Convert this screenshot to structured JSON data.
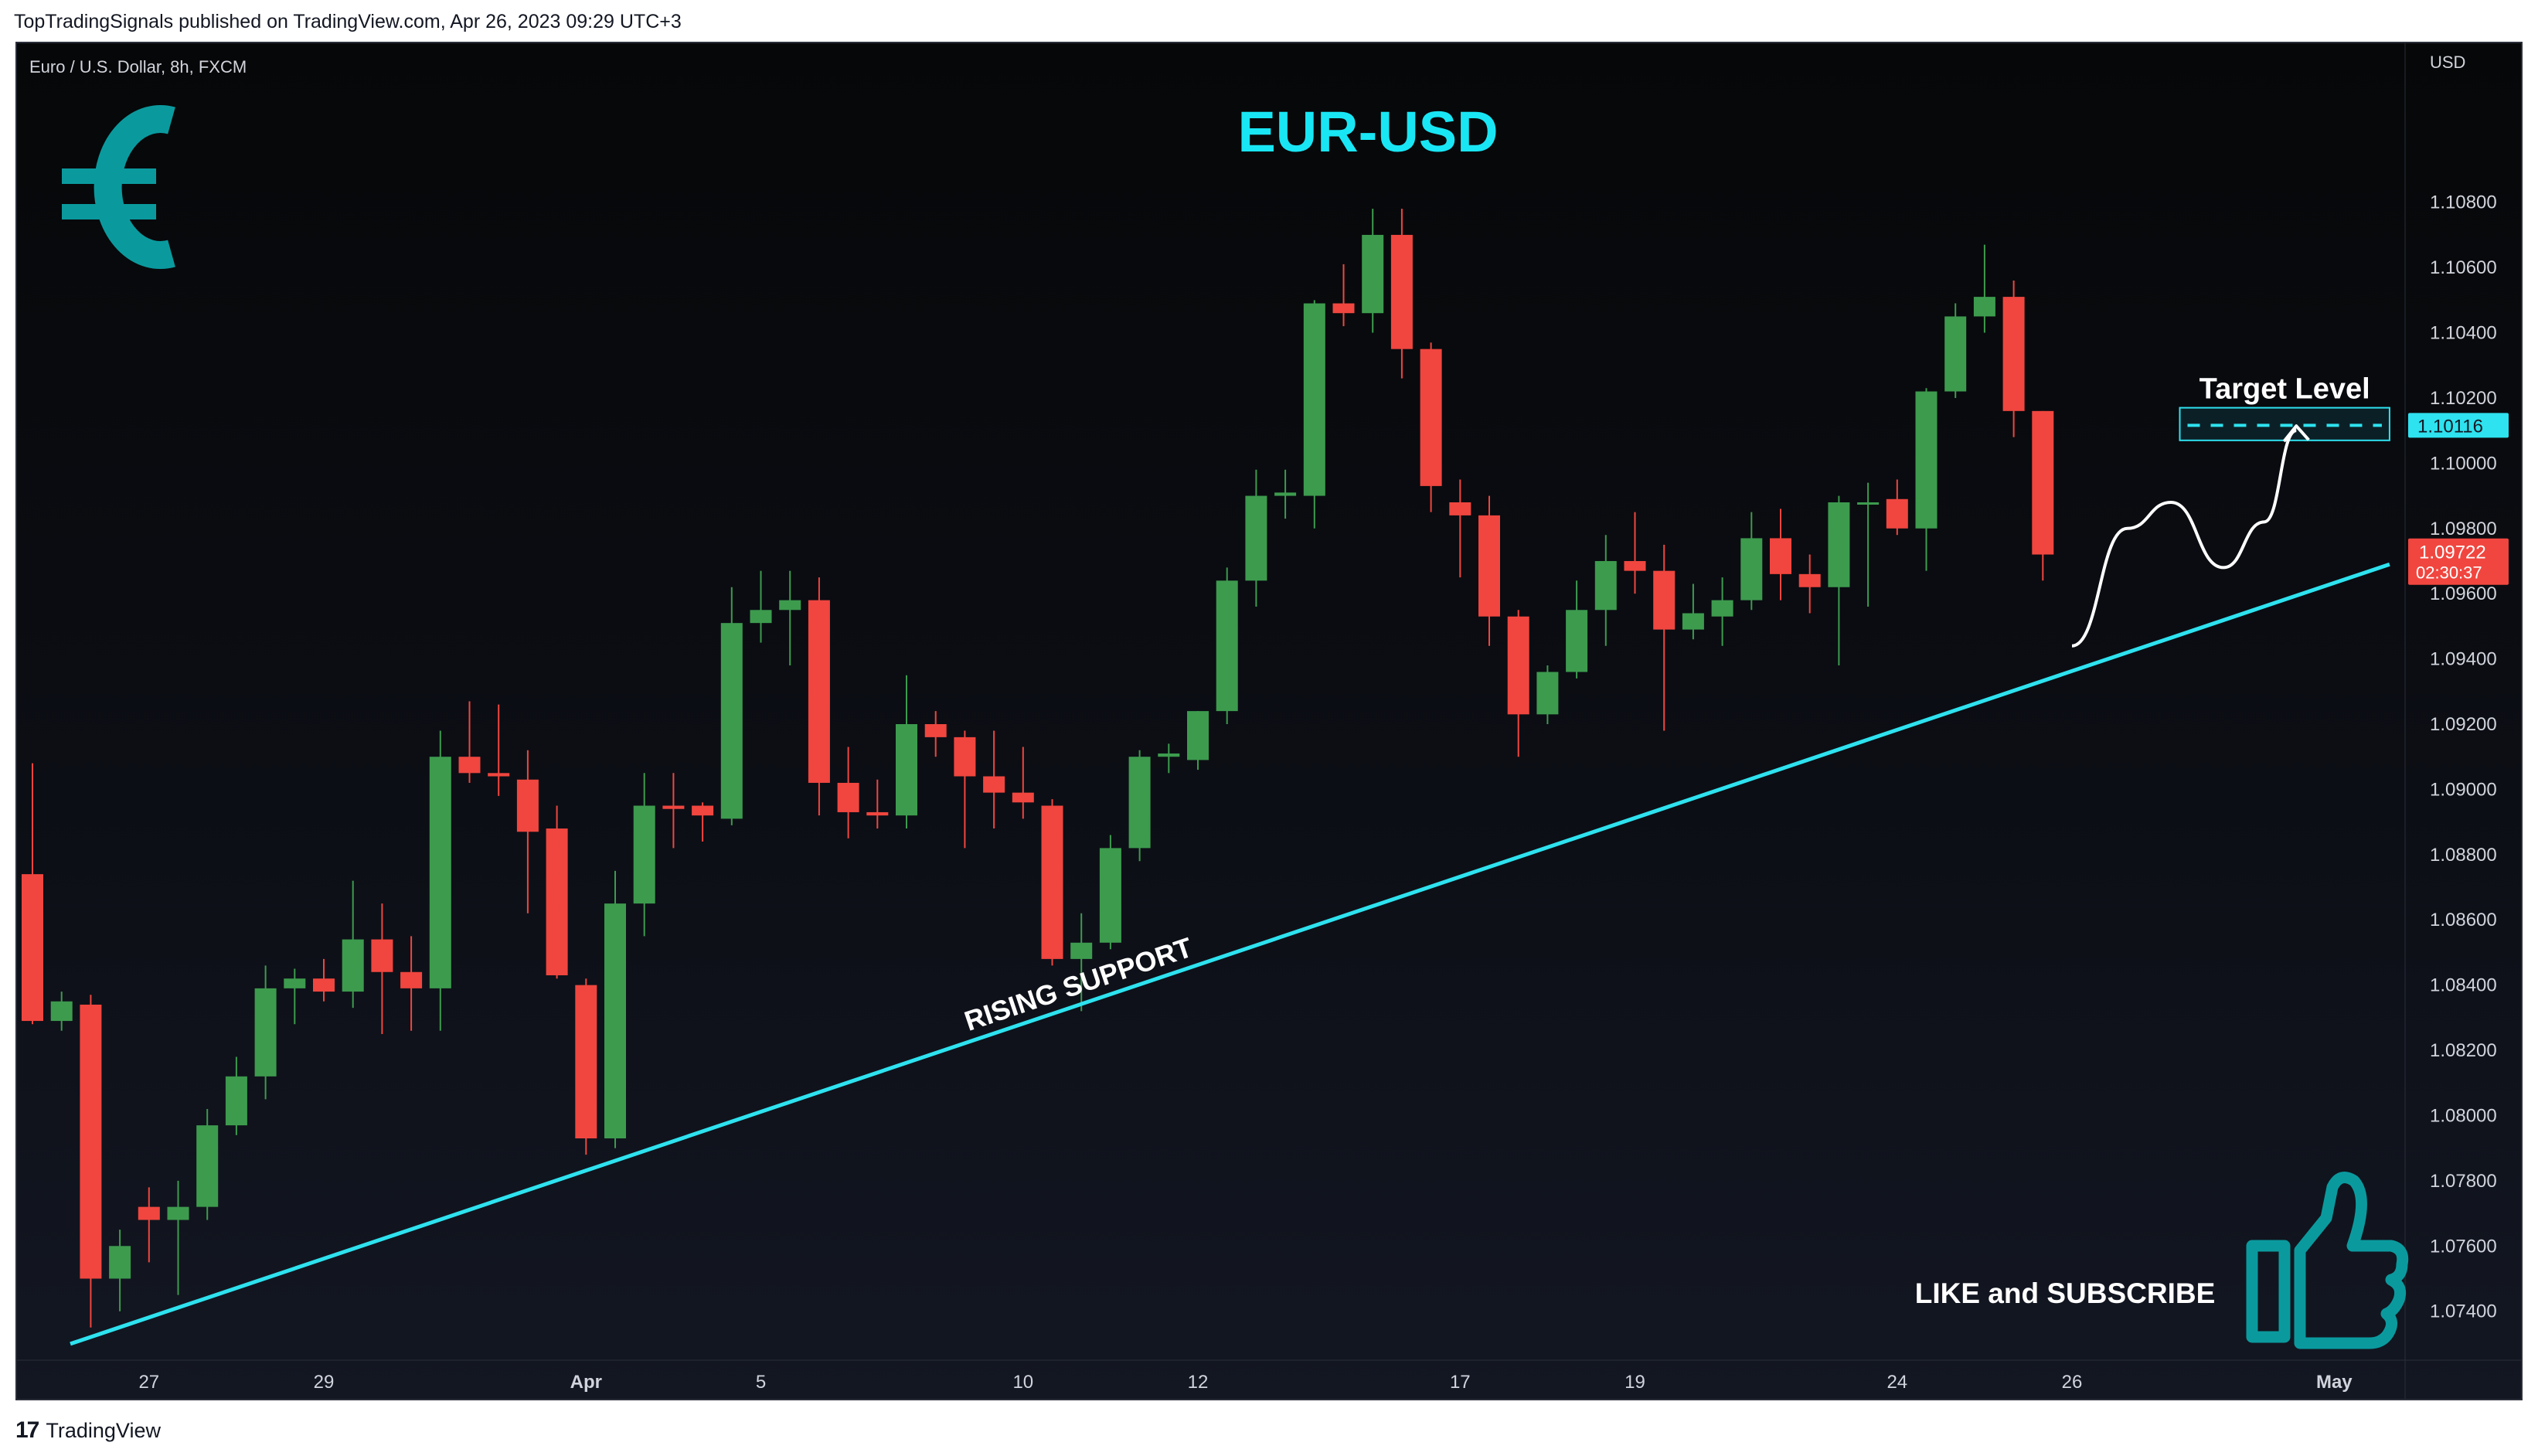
{
  "header": {
    "caption": "TopTradingSignals published on TradingView.com, Apr 26, 2023 09:29 UTC+3"
  },
  "footer": {
    "logo_text": "TradingView"
  },
  "colors": {
    "up": "#3d9b4e",
    "down": "#f0463f",
    "support_line": "#2ee2ef",
    "title": "#19e6f4",
    "euro_icon": "#0a9a9e",
    "thumb_icon": "#0a9a9e",
    "arrow": "#ffffff",
    "axis_text": "#d1d4dc"
  },
  "chart_data": {
    "type": "candlestick",
    "symbol_label": "Euro / U.S. Dollar, 8h, FXCM",
    "title": "EUR-USD",
    "y_axis_unit": "USD",
    "ylim": [
      1.0725,
      1.1115
    ],
    "y_ticks": [
      "1.10800",
      "1.10600",
      "1.10400",
      "1.10200",
      "1.10000",
      "1.09800",
      "1.09600",
      "1.09400",
      "1.09200",
      "1.09000",
      "1.08800",
      "1.08600",
      "1.08400",
      "1.08200",
      "1.08000",
      "1.07800",
      "1.07600",
      "1.07400"
    ],
    "x_ticks": [
      {
        "label": "27",
        "index": 4
      },
      {
        "label": "29",
        "index": 10
      },
      {
        "label": "Apr",
        "index": 19
      },
      {
        "label": "5",
        "index": 25
      },
      {
        "label": "10",
        "index": 34
      },
      {
        "label": "12",
        "index": 40
      },
      {
        "label": "17",
        "index": 49
      },
      {
        "label": "19",
        "index": 55
      },
      {
        "label": "24",
        "index": 64
      },
      {
        "label": "26",
        "index": 70
      },
      {
        "label": "May",
        "index": 79
      }
    ],
    "candles": [
      {
        "o": 1.0874,
        "h": 1.0908,
        "l": 1.0828,
        "c": 1.0829
      },
      {
        "o": 1.0829,
        "h": 1.0838,
        "l": 1.0826,
        "c": 1.0835
      },
      {
        "o": 1.0834,
        "h": 1.0837,
        "l": 1.0735,
        "c": 1.075
      },
      {
        "o": 1.075,
        "h": 1.0765,
        "l": 1.074,
        "c": 1.076
      },
      {
        "o": 1.0772,
        "h": 1.0778,
        "l": 1.0755,
        "c": 1.0768
      },
      {
        "o": 1.0768,
        "h": 1.078,
        "l": 1.0745,
        "c": 1.0772
      },
      {
        "o": 1.0772,
        "h": 1.0802,
        "l": 1.0768,
        "c": 1.0797
      },
      {
        "o": 1.0797,
        "h": 1.0818,
        "l": 1.0794,
        "c": 1.0812
      },
      {
        "o": 1.0812,
        "h": 1.0846,
        "l": 1.0805,
        "c": 1.0839
      },
      {
        "o": 1.0839,
        "h": 1.0845,
        "l": 1.0828,
        "c": 1.0842
      },
      {
        "o": 1.0842,
        "h": 1.0848,
        "l": 1.0835,
        "c": 1.0838
      },
      {
        "o": 1.0838,
        "h": 1.0872,
        "l": 1.0833,
        "c": 1.0854
      },
      {
        "o": 1.0854,
        "h": 1.0865,
        "l": 1.0825,
        "c": 1.0844
      },
      {
        "o": 1.0844,
        "h": 1.0855,
        "l": 1.0826,
        "c": 1.0839
      },
      {
        "o": 1.0839,
        "h": 1.0918,
        "l": 1.0826,
        "c": 1.091
      },
      {
        "o": 1.091,
        "h": 1.0927,
        "l": 1.0902,
        "c": 1.0905
      },
      {
        "o": 1.0905,
        "h": 1.0926,
        "l": 1.0898,
        "c": 1.0904
      },
      {
        "o": 1.0903,
        "h": 1.0912,
        "l": 1.0862,
        "c": 1.0887
      },
      {
        "o": 1.0888,
        "h": 1.0895,
        "l": 1.0842,
        "c": 1.0843
      },
      {
        "o": 1.084,
        "h": 1.0842,
        "l": 1.0788,
        "c": 1.0793
      },
      {
        "o": 1.0793,
        "h": 1.0875,
        "l": 1.079,
        "c": 1.0865
      },
      {
        "o": 1.0865,
        "h": 1.0905,
        "l": 1.0855,
        "c": 1.0895
      },
      {
        "o": 1.0895,
        "h": 1.0905,
        "l": 1.0882,
        "c": 1.0894
      },
      {
        "o": 1.0895,
        "h": 1.0896,
        "l": 1.0884,
        "c": 1.0892
      },
      {
        "o": 1.0891,
        "h": 1.0962,
        "l": 1.0889,
        "c": 1.0951
      },
      {
        "o": 1.0951,
        "h": 1.0967,
        "l": 1.0945,
        "c": 1.0955
      },
      {
        "o": 1.0955,
        "h": 1.0967,
        "l": 1.0938,
        "c": 1.0958
      },
      {
        "o": 1.0958,
        "h": 1.0965,
        "l": 1.0892,
        "c": 1.0902
      },
      {
        "o": 1.0902,
        "h": 1.0913,
        "l": 1.0885,
        "c": 1.0893
      },
      {
        "o": 1.0893,
        "h": 1.0903,
        "l": 1.0888,
        "c": 1.0892
      },
      {
        "o": 1.0892,
        "h": 1.0935,
        "l": 1.0888,
        "c": 1.092
      },
      {
        "o": 1.092,
        "h": 1.0924,
        "l": 1.091,
        "c": 1.0916
      },
      {
        "o": 1.0916,
        "h": 1.0918,
        "l": 1.0882,
        "c": 1.0904
      },
      {
        "o": 1.0904,
        "h": 1.0918,
        "l": 1.0888,
        "c": 1.0899
      },
      {
        "o": 1.0899,
        "h": 1.0913,
        "l": 1.0891,
        "c": 1.0896
      },
      {
        "o": 1.0895,
        "h": 1.0897,
        "l": 1.0846,
        "c": 1.0848
      },
      {
        "o": 1.0848,
        "h": 1.0862,
        "l": 1.0832,
        "c": 1.0853
      },
      {
        "o": 1.0853,
        "h": 1.0886,
        "l": 1.0851,
        "c": 1.0882
      },
      {
        "o": 1.0882,
        "h": 1.0912,
        "l": 1.0878,
        "c": 1.091
      },
      {
        "o": 1.091,
        "h": 1.0914,
        "l": 1.0905,
        "c": 1.0911
      },
      {
        "o": 1.0909,
        "h": 1.0924,
        "l": 1.0906,
        "c": 1.0924
      },
      {
        "o": 1.0924,
        "h": 1.0968,
        "l": 1.092,
        "c": 1.0964
      },
      {
        "o": 1.0964,
        "h": 1.0998,
        "l": 1.0956,
        "c": 1.099
      },
      {
        "o": 1.099,
        "h": 1.0998,
        "l": 1.0983,
        "c": 1.0991
      },
      {
        "o": 1.099,
        "h": 1.105,
        "l": 1.098,
        "c": 1.1049
      },
      {
        "o": 1.1049,
        "h": 1.1061,
        "l": 1.1042,
        "c": 1.1046
      },
      {
        "o": 1.1046,
        "h": 1.1078,
        "l": 1.104,
        "c": 1.107
      },
      {
        "o": 1.107,
        "h": 1.1078,
        "l": 1.1026,
        "c": 1.1035
      },
      {
        "o": 1.1035,
        "h": 1.1037,
        "l": 1.0985,
        "c": 1.0993
      },
      {
        "o": 1.0988,
        "h": 1.0995,
        "l": 1.0965,
        "c": 1.0984
      },
      {
        "o": 1.0984,
        "h": 1.099,
        "l": 1.0944,
        "c": 1.0953
      },
      {
        "o": 1.0953,
        "h": 1.0955,
        "l": 1.091,
        "c": 1.0923
      },
      {
        "o": 1.0923,
        "h": 1.0938,
        "l": 1.092,
        "c": 1.0936
      },
      {
        "o": 1.0936,
        "h": 1.0964,
        "l": 1.0934,
        "c": 1.0955
      },
      {
        "o": 1.0955,
        "h": 1.0978,
        "l": 1.0944,
        "c": 1.097
      },
      {
        "o": 1.097,
        "h": 1.0985,
        "l": 1.096,
        "c": 1.0967
      },
      {
        "o": 1.0967,
        "h": 1.0975,
        "l": 1.0918,
        "c": 1.0949
      },
      {
        "o": 1.0949,
        "h": 1.0963,
        "l": 1.0946,
        "c": 1.0954
      },
      {
        "o": 1.0953,
        "h": 1.0965,
        "l": 1.0944,
        "c": 1.0958
      },
      {
        "o": 1.0958,
        "h": 1.0985,
        "l": 1.0955,
        "c": 1.0977
      },
      {
        "o": 1.0977,
        "h": 1.0986,
        "l": 1.0958,
        "c": 1.0966
      },
      {
        "o": 1.0966,
        "h": 1.0972,
        "l": 1.0954,
        "c": 1.0962
      },
      {
        "o": 1.0962,
        "h": 1.099,
        "l": 1.0938,
        "c": 1.0988
      },
      {
        "o": 1.0988,
        "h": 1.0994,
        "l": 1.0956,
        "c": 1.0988
      },
      {
        "o": 1.0989,
        "h": 1.0995,
        "l": 1.0978,
        "c": 1.098
      },
      {
        "o": 1.098,
        "h": 1.1023,
        "l": 1.0967,
        "c": 1.1022
      },
      {
        "o": 1.1022,
        "h": 1.1049,
        "l": 1.102,
        "c": 1.1045
      },
      {
        "o": 1.1045,
        "h": 1.1067,
        "l": 1.104,
        "c": 1.1051
      },
      {
        "o": 1.1051,
        "h": 1.1056,
        "l": 1.1008,
        "c": 1.1016
      },
      {
        "o": 1.1016,
        "h": 1.1016,
        "l": 1.0964,
        "c": 1.0972
      }
    ],
    "support_line": {
      "label": "RISING SUPPORT",
      "from": {
        "index": 1.3,
        "price": 1.073
      },
      "to": {
        "index": 80.9,
        "price": 1.0969
      }
    },
    "target": {
      "label": "Target Level",
      "price": 1.10116,
      "price_label": "1.10116",
      "from_index": 73.7,
      "to_index": 80.9,
      "band": [
        1.1007,
        1.1017
      ]
    },
    "projection_path": [
      {
        "index": 70.0,
        "price": 1.0944
      },
      {
        "index": 71.9,
        "price": 1.098
      },
      {
        "index": 73.4,
        "price": 1.0988
      },
      {
        "index": 75.2,
        "price": 1.0968
      },
      {
        "index": 76.6,
        "price": 1.0982
      },
      {
        "index": 77.7,
        "price": 1.101
      }
    ],
    "current_price": {
      "label": "1.09722",
      "countdown": "02:30:37",
      "price": 1.09722
    },
    "annotations": {
      "cta": "LIKE and SUBSCRIBE"
    }
  }
}
